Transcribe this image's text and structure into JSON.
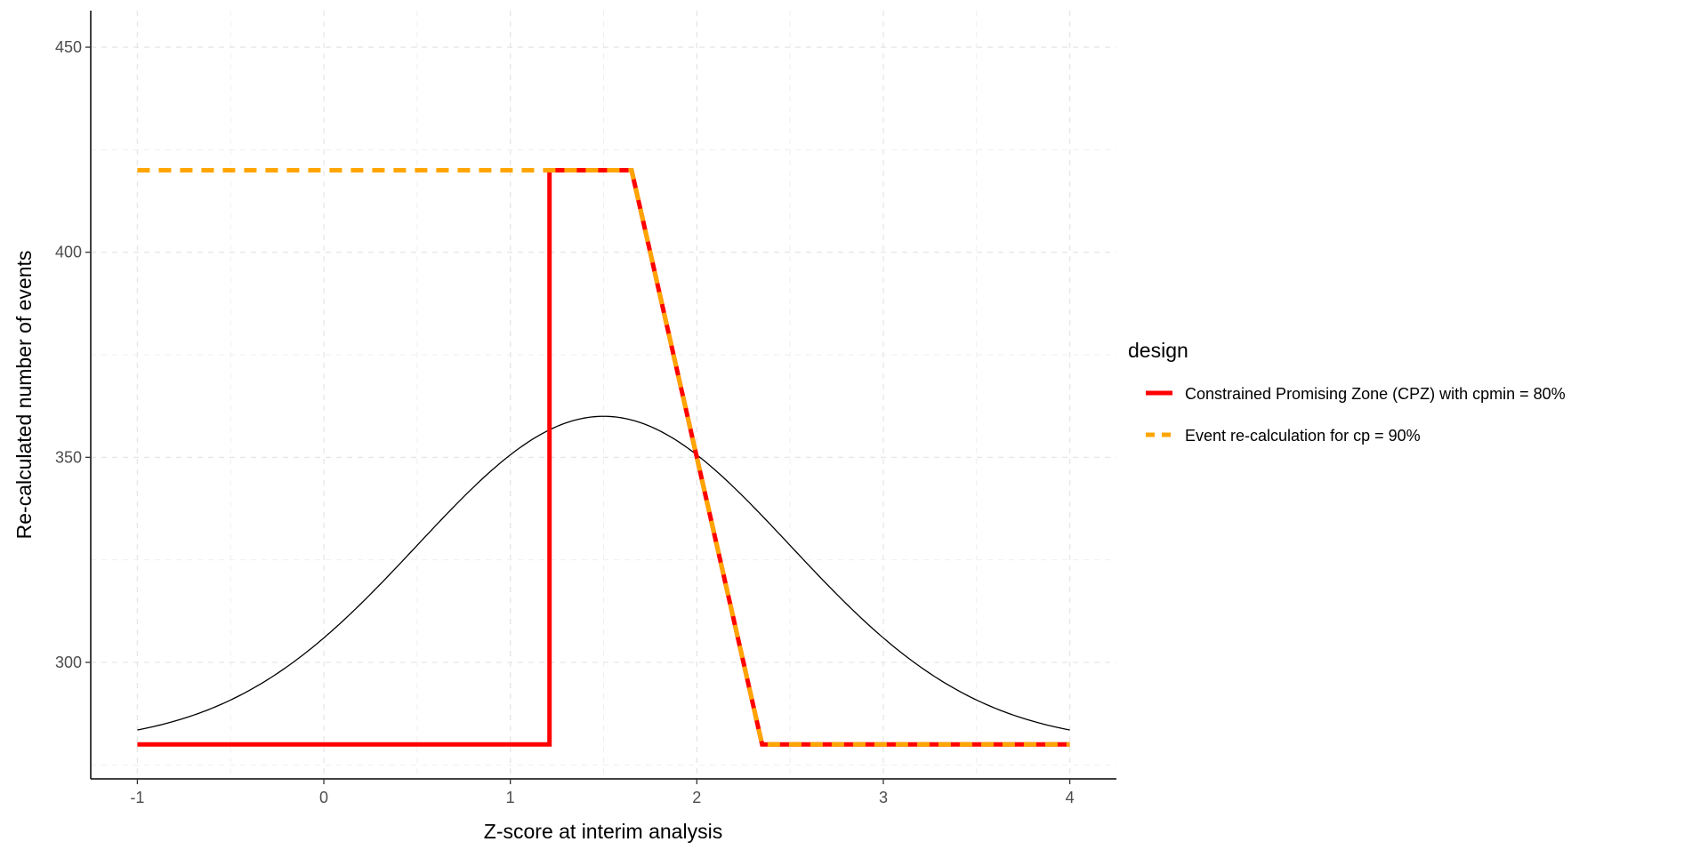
{
  "chart_data": {
    "type": "line",
    "title": "",
    "xlabel": "Z-score at interim analysis",
    "ylabel": "Re-calculated number of events",
    "xlim": [
      -1.25,
      4.25
    ],
    "ylim": [
      271.6,
      458.9
    ],
    "x_ticks": [
      -1,
      0,
      1,
      2,
      3,
      4
    ],
    "x_tick_labels": [
      "-1",
      "0",
      "1",
      "2",
      "3",
      "4"
    ],
    "y_ticks": [
      300,
      350,
      400,
      450
    ],
    "y_tick_labels": [
      "300",
      "350",
      "400",
      "450"
    ],
    "grid": true,
    "legend": {
      "title": "design",
      "placement": "right"
    },
    "series": [
      {
        "name": "Constrained Promising Zone (CPZ) with cpmin = 80%",
        "color": "#ff0000",
        "dash": "solid",
        "x": [
          -1,
          1.21,
          1.21,
          1.65,
          2.35,
          4
        ],
        "y": [
          280,
          280,
          420,
          420,
          280,
          280
        ]
      },
      {
        "name": "Event re-calculation for cp = 90%",
        "color": "#ffa500",
        "dash": "dashed",
        "x": [
          -1,
          1.65,
          2.35,
          4
        ],
        "y": [
          420,
          420,
          280,
          280
        ]
      }
    ],
    "density_curve": {
      "color": "#000000",
      "baseline": 280,
      "amplitude": 80,
      "mean": 1.5,
      "sd": 1,
      "x_range": [
        -1,
        4
      ]
    }
  }
}
